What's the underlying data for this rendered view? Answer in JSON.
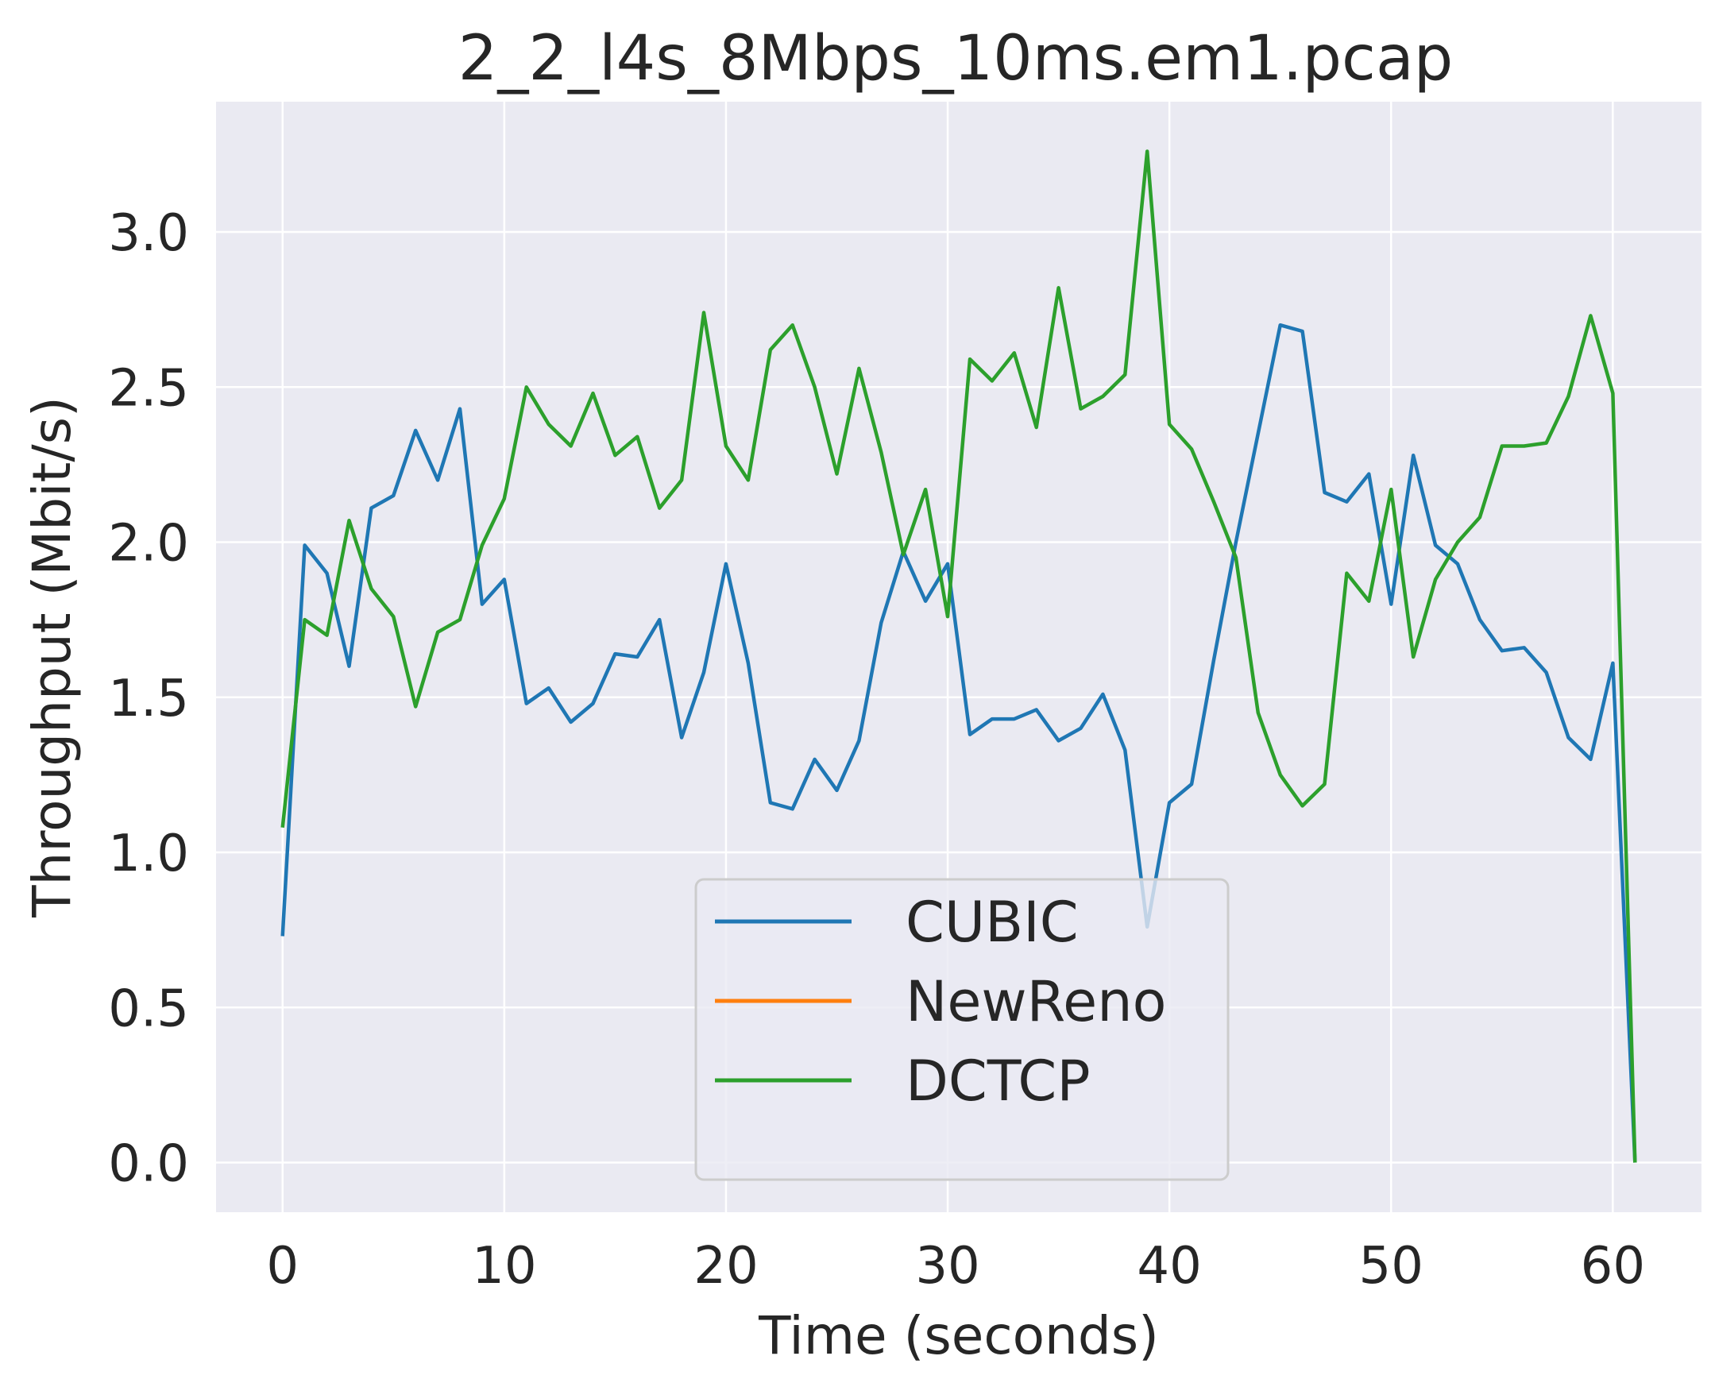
{
  "chart_data": {
    "type": "line",
    "title": "2_2_l4s_8Mbps_10ms.em1.pcap",
    "xlabel": "Time (seconds)",
    "ylabel": "Throughput (Mbit/s)",
    "xlim": [
      -3,
      64
    ],
    "ylim": [
      -0.16,
      3.42
    ],
    "x_ticks": [
      0,
      10,
      20,
      30,
      40,
      50,
      60
    ],
    "x_tick_labels": [
      "0",
      "10",
      "20",
      "30",
      "40",
      "50",
      "60"
    ],
    "y_ticks": [
      0.0,
      0.5,
      1.0,
      1.5,
      2.0,
      2.5,
      3.0
    ],
    "y_tick_labels": [
      "0.0",
      "0.5",
      "1.0",
      "1.5",
      "2.0",
      "2.5",
      "3.0"
    ],
    "grid": true,
    "legend_position": "lower center",
    "series": [
      {
        "name": "CUBIC",
        "color": "#1f77b4",
        "x": [
          0,
          1,
          2,
          3,
          4,
          5,
          6,
          7,
          8,
          9,
          10,
          11,
          12,
          13,
          14,
          15,
          16,
          17,
          18,
          19,
          20,
          21,
          22,
          23,
          24,
          25,
          26,
          27,
          28,
          29,
          30,
          31,
          32,
          33,
          34,
          35,
          36,
          37,
          38,
          39,
          40,
          41,
          42,
          43,
          44,
          45,
          46,
          47,
          48,
          49,
          50,
          51,
          52,
          53,
          54,
          55,
          56,
          57,
          58,
          59,
          60,
          61
        ],
        "y": [
          0.73,
          1.99,
          1.9,
          1.6,
          2.11,
          2.15,
          2.36,
          2.2,
          2.43,
          1.8,
          1.88,
          1.48,
          1.53,
          1.42,
          1.48,
          1.64,
          1.63,
          1.75,
          1.37,
          1.58,
          1.93,
          1.61,
          1.16,
          1.14,
          1.3,
          1.2,
          1.36,
          1.74,
          1.97,
          1.81,
          1.93,
          1.38,
          1.43,
          1.43,
          1.46,
          1.36,
          1.4,
          1.51,
          1.33,
          0.76,
          1.16,
          1.22,
          1.62,
          2.0,
          2.35,
          2.7,
          2.68,
          2.16,
          2.13,
          2.22,
          1.8,
          2.28,
          1.99,
          1.93,
          1.75,
          1.65,
          1.66,
          1.58,
          1.37,
          1.3,
          1.61,
          0.0
        ]
      },
      {
        "name": "NewReno",
        "color": "#ff7f0e",
        "x": [],
        "y": []
      },
      {
        "name": "DCTCP",
        "color": "#2ca02c",
        "x": [
          0,
          1,
          2,
          3,
          4,
          5,
          6,
          7,
          8,
          9,
          10,
          11,
          12,
          13,
          14,
          15,
          16,
          17,
          18,
          19,
          20,
          21,
          22,
          23,
          24,
          25,
          26,
          27,
          28,
          29,
          30,
          31,
          32,
          33,
          34,
          35,
          36,
          37,
          38,
          39,
          40,
          41,
          42,
          43,
          44,
          45,
          46,
          47,
          48,
          49,
          50,
          51,
          52,
          53,
          54,
          55,
          56,
          57,
          58,
          59,
          60,
          61
        ],
        "y": [
          1.08,
          1.75,
          1.7,
          2.07,
          1.85,
          1.76,
          1.47,
          1.71,
          1.75,
          1.99,
          2.14,
          2.5,
          2.38,
          2.31,
          2.48,
          2.28,
          2.34,
          2.11,
          2.2,
          2.74,
          2.31,
          2.2,
          2.62,
          2.7,
          2.5,
          2.22,
          2.56,
          2.29,
          1.96,
          2.17,
          1.76,
          2.59,
          2.52,
          2.61,
          2.37,
          2.82,
          2.43,
          2.47,
          2.54,
          3.26,
          2.38,
          2.3,
          2.13,
          1.95,
          1.45,
          1.25,
          1.15,
          1.22,
          1.9,
          1.81,
          2.17,
          1.63,
          1.88,
          2.0,
          2.08,
          2.31,
          2.31,
          2.32,
          2.47,
          2.73,
          2.48,
          0.0
        ]
      }
    ]
  }
}
